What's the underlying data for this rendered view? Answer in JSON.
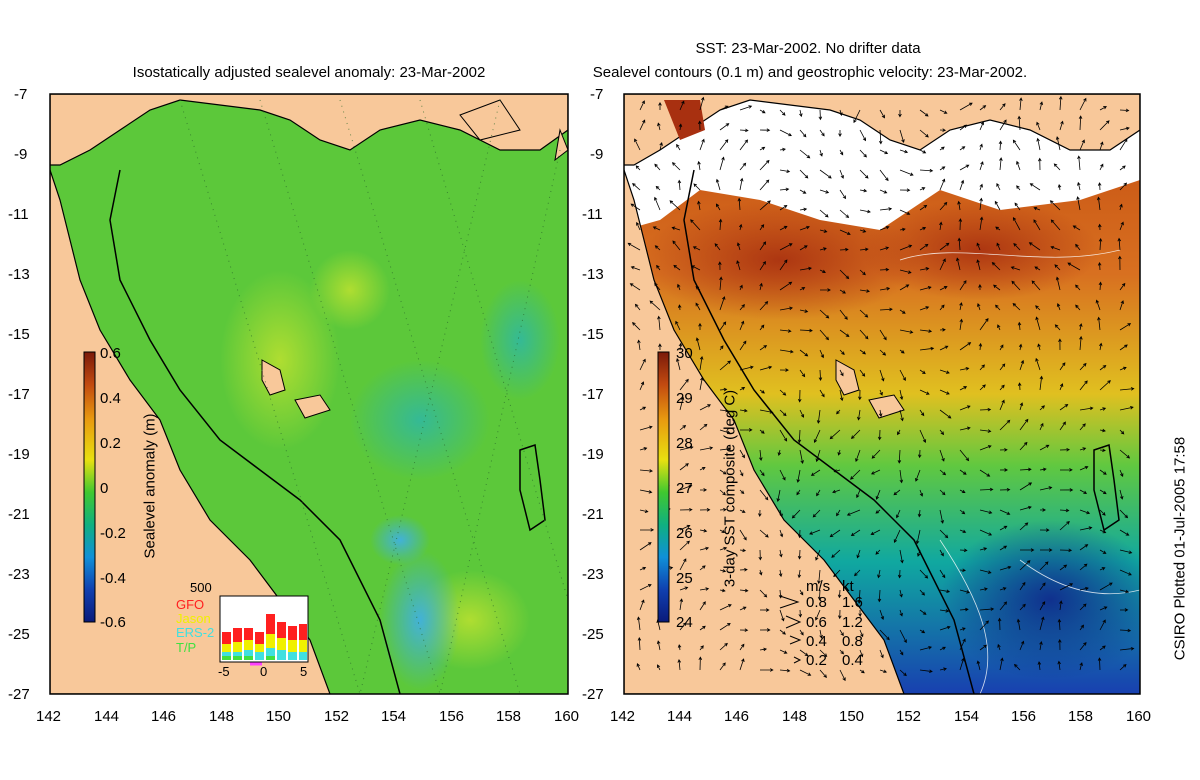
{
  "left_panel": {
    "title": "Isostatically adjusted sealevel anomaly: 23-Mar-2002",
    "colorbar": {
      "label": "Sealevel anomaly (m)",
      "ticks": [
        "0.6",
        "0.4",
        "0.2",
        "0",
        "-0.2",
        "-0.4",
        "-0.6"
      ],
      "colors": [
        "#7a1a0a",
        "#c24a10",
        "#e89a10",
        "#e8e010",
        "#40c830",
        "#10b080",
        "#1090d8",
        "#1040b0",
        "#0a1a7a"
      ]
    },
    "inset": {
      "count_label": "500",
      "missions": [
        {
          "name": "GFO",
          "color": "#ff2020"
        },
        {
          "name": "Jason",
          "color": "#f0f000"
        },
        {
          "name": "ERS-2",
          "color": "#40e0e0"
        },
        {
          "name": "T/P",
          "color": "#40e040"
        }
      ],
      "xticks": [
        "-5",
        "0",
        "5"
      ]
    }
  },
  "right_panel": {
    "title_line1": "SST: 23-Mar-2002. No drifter data",
    "title_line2": "Sealevel contours (0.1 m) and geostrophic velocity: 23-Mar-2002.",
    "colorbar": {
      "label": "3-day SST composite (deg C)",
      "ticks": [
        "30",
        "29",
        "28",
        "27",
        "26",
        "25",
        "24"
      ],
      "colors": [
        "#7a1a0a",
        "#c24a10",
        "#e89a10",
        "#e8e010",
        "#40c830",
        "#10b080",
        "#1090d8",
        "#1040b0",
        "#0a1a7a"
      ]
    },
    "velocity_legend": {
      "header_ms": "m/s",
      "header_kt": "kt",
      "rows": [
        {
          "ms": "0.8",
          "kt": "1.6"
        },
        {
          "ms": "0.6",
          "kt": "1.2"
        },
        {
          "ms": "0.4",
          "kt": "0.8"
        },
        {
          "ms": "0.2",
          "kt": "0.4"
        }
      ]
    }
  },
  "axes": {
    "y_ticks": [
      "-7",
      "-9",
      "-11",
      "-13",
      "-15",
      "-17",
      "-19",
      "-21",
      "-23",
      "-25",
      "-27"
    ],
    "x_ticks": [
      "142",
      "144",
      "146",
      "148",
      "150",
      "152",
      "154",
      "156",
      "158",
      "160"
    ],
    "lon_range": [
      142,
      160
    ],
    "lat_range": [
      -27,
      -7
    ]
  },
  "credit": "CSIRO Plotted 01-Jul-2005 17:58",
  "colors": {
    "land": "#f8c89a",
    "ocean_left": "#5cc83a",
    "ocean_right_warm": "#d86a20",
    "ocean_right_cool": "#2060c0"
  }
}
